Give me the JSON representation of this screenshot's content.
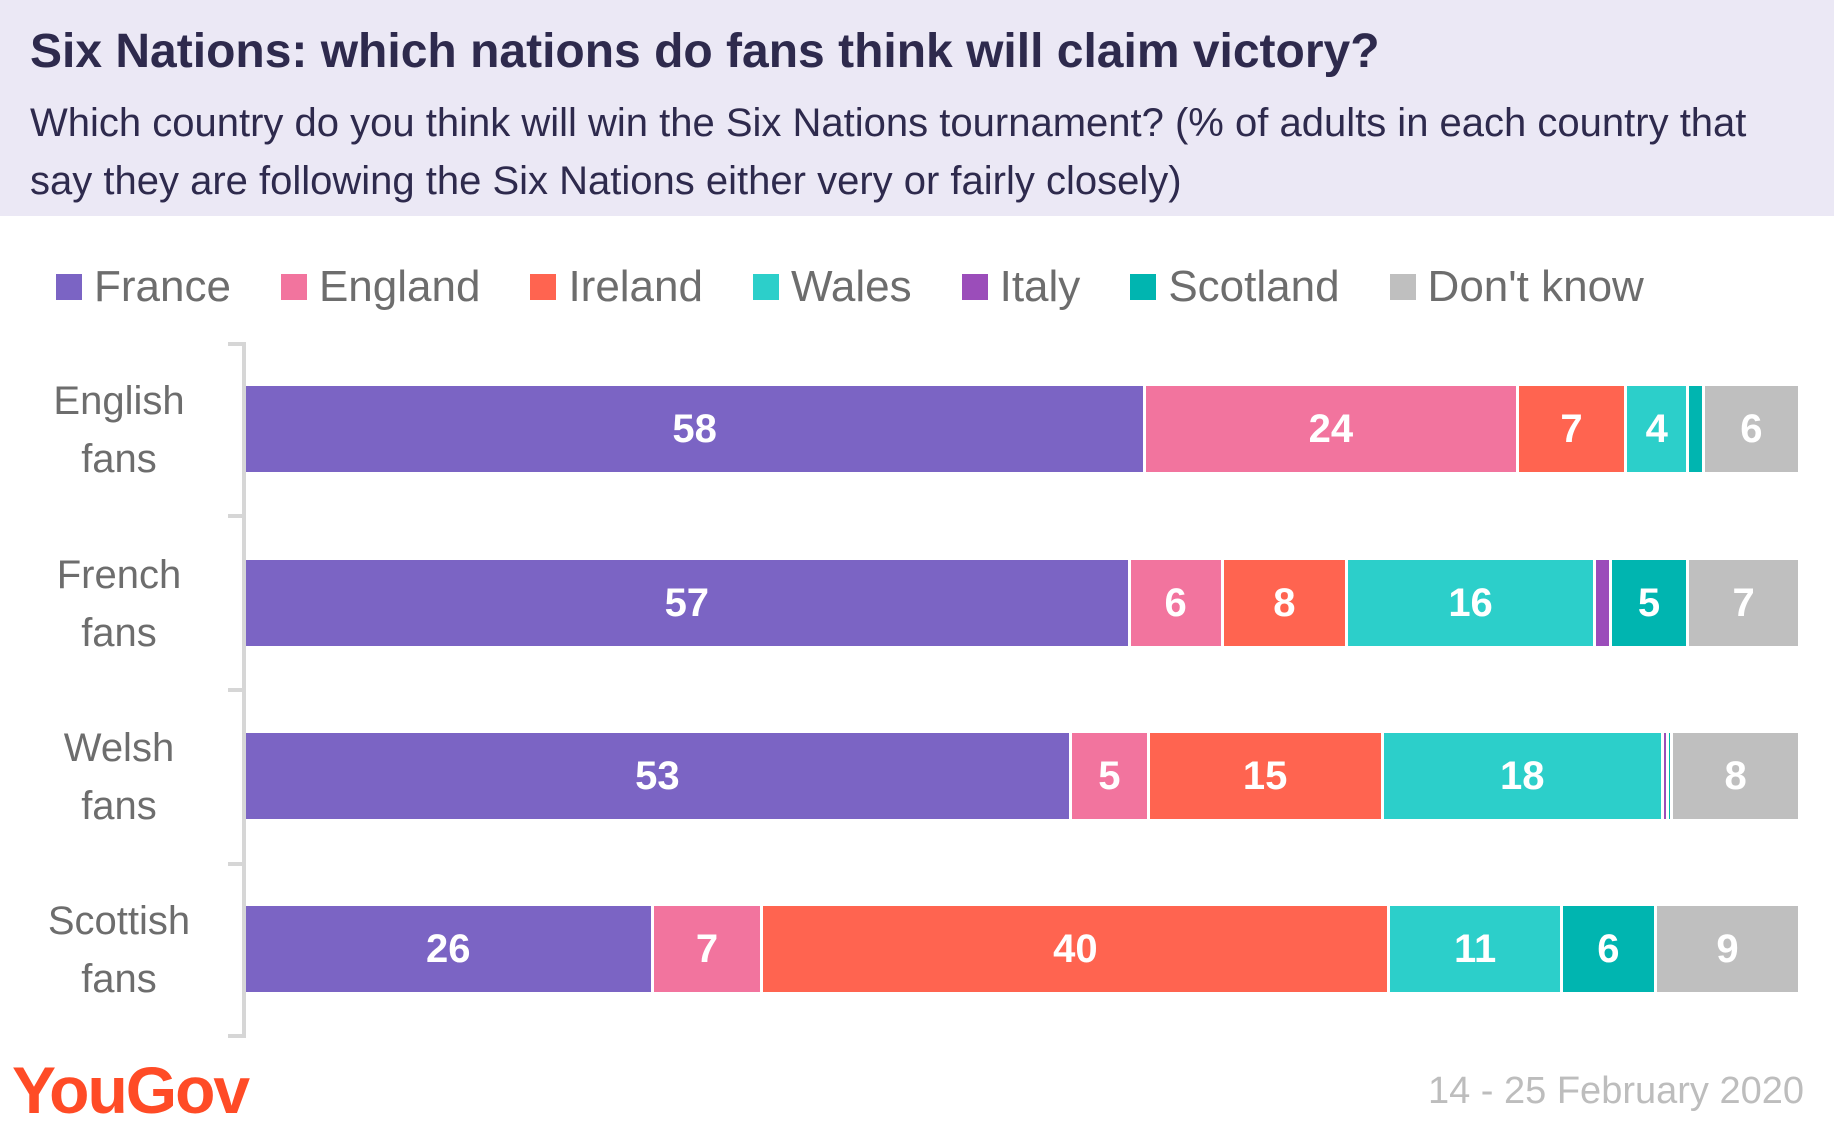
{
  "title": "Six Nations: which nations do fans think will claim victory?",
  "subtitle": "Which country do you think will win the Six Nations tournament? (% of adults in each country that say they are following the Six Nations either very or fairly closely)",
  "source": {
    "logo": "YouGov",
    "date": "14 - 25 February 2020"
  },
  "chart_data": {
    "type": "bar",
    "orientation": "horizontal",
    "stacked": true,
    "unit": "%",
    "xlim": [
      0,
      100
    ],
    "legend_position": "top",
    "grid": false,
    "title": "Six Nations: which nations do fans think will claim victory?",
    "subtitle": "Which country do you think will win the Six Nations tournament? (% of adults in each country that say they are following the Six Nations either very or fairly closely)",
    "categories": [
      {
        "line1": "English",
        "line2": "fans"
      },
      {
        "line1": "French",
        "line2": "fans"
      },
      {
        "line1": "Welsh",
        "line2": "fans"
      },
      {
        "line1": "Scottish",
        "line2": "fans"
      }
    ],
    "series": [
      {
        "name": "France",
        "color": "#7b64c4",
        "values": [
          58,
          57,
          53,
          26
        ]
      },
      {
        "name": "England",
        "color": "#f2749e",
        "values": [
          24,
          6,
          5,
          7
        ]
      },
      {
        "name": "Ireland",
        "color": "#ff6450",
        "values": [
          7,
          8,
          15,
          40
        ]
      },
      {
        "name": "Wales",
        "color": "#2ccfca",
        "values": [
          4,
          16,
          18,
          11
        ]
      },
      {
        "name": "Italy",
        "color": "#9b4dba",
        "values": [
          0,
          1,
          0.3,
          0
        ]
      },
      {
        "name": "Scotland",
        "color": "#00b5b0",
        "values": [
          1,
          5,
          0.3,
          6
        ]
      },
      {
        "name": "Don't know",
        "color": "#bfbfbf",
        "values": [
          6,
          7,
          8,
          9
        ]
      }
    ],
    "data_labels": [
      [
        "58",
        "24",
        "7",
        "4",
        "",
        "",
        "6"
      ],
      [
        "57",
        "6",
        "8",
        "16",
        "",
        "5",
        "7"
      ],
      [
        "53",
        "5",
        "15",
        "18",
        "",
        "",
        "8"
      ],
      [
        "26",
        "7",
        "40",
        "11",
        "",
        "6",
        "9"
      ]
    ]
  }
}
